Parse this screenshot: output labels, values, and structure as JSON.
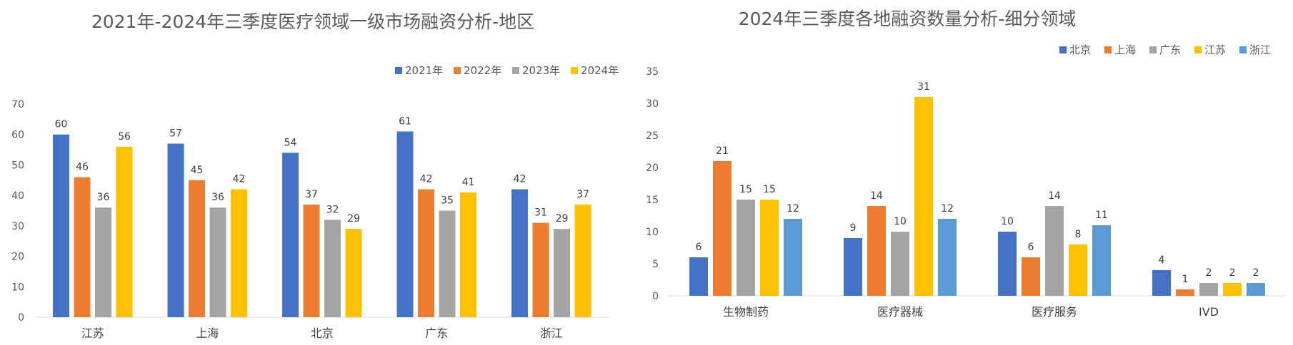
{
  "chart_data": [
    {
      "type": "bar",
      "title": "2021年-2024年三季度医疗领域一级市场融资分析-地区",
      "categories": [
        "江苏",
        "上海",
        "北京",
        "广东",
        "浙江"
      ],
      "series": [
        {
          "name": "2021年",
          "color": "#4472c4",
          "values": [
            60,
            57,
            54,
            61,
            42
          ]
        },
        {
          "name": "2022年",
          "color": "#ed7d31",
          "values": [
            46,
            45,
            37,
            42,
            31
          ]
        },
        {
          "name": "2023年",
          "color": "#a5a5a5",
          "values": [
            36,
            36,
            32,
            35,
            29
          ]
        },
        {
          "name": "2024年",
          "color": "#ffc000",
          "values": [
            56,
            42,
            29,
            41,
            37
          ]
        }
      ],
      "ylim": [
        0,
        70
      ],
      "yticks": [
        0,
        10,
        20,
        30,
        40,
        50,
        60,
        70
      ],
      "grid": false,
      "legend": "top-right",
      "data_labels": true
    },
    {
      "type": "bar",
      "title": "2024年三季度各地融资数量分析-细分领域",
      "categories": [
        "生物制药",
        "医疗器械",
        "医疗服务",
        "IVD"
      ],
      "series": [
        {
          "name": "北京",
          "color": "#4472c4",
          "values": [
            6,
            9,
            10,
            4
          ]
        },
        {
          "name": "上海",
          "color": "#ed7d31",
          "values": [
            21,
            14,
            6,
            1
          ]
        },
        {
          "name": "广东",
          "color": "#a5a5a5",
          "values": [
            15,
            10,
            14,
            2
          ]
        },
        {
          "name": "江苏",
          "color": "#ffc000",
          "values": [
            15,
            31,
            8,
            2
          ]
        },
        {
          "name": "浙江",
          "color": "#5b9bd5",
          "values": [
            12,
            12,
            11,
            2
          ]
        }
      ],
      "ylim": [
        0,
        35
      ],
      "yticks": [
        0,
        5,
        10,
        15,
        20,
        25,
        30,
        35
      ],
      "grid": false,
      "legend": "top-right",
      "data_labels": true
    }
  ]
}
